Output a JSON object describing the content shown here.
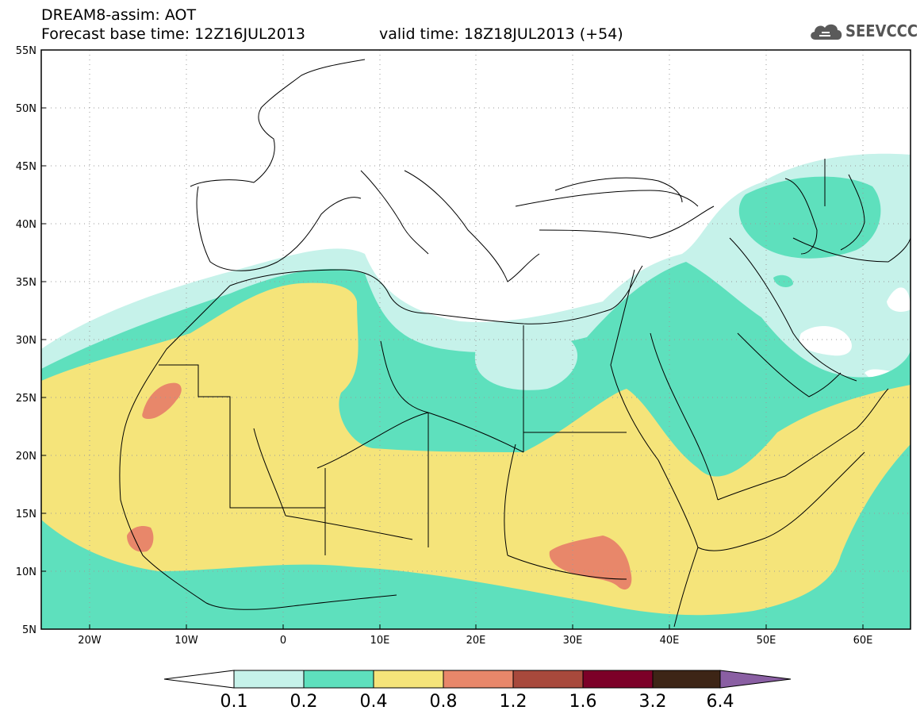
{
  "header": {
    "title": "DREAM8-assim: AOT",
    "base_time": "Forecast base time: 12Z16JUL2013",
    "valid_time": "valid time: 18Z18JUL2013 (+54)",
    "logo_text": "SEEVCCC"
  },
  "map": {
    "lat_labels": [
      "55N",
      "50N",
      "45N",
      "40N",
      "35N",
      "30N",
      "25N",
      "20N",
      "15N",
      "10N",
      "5N"
    ],
    "lon_labels": [
      "20W",
      "10W",
      "0",
      "10E",
      "20E",
      "30E",
      "40E",
      "50E",
      "60E"
    ],
    "extent": {
      "lon_min": -25,
      "lon_max": 65,
      "lat_min": 5,
      "lat_max": 55
    },
    "colors": {
      "land_border": "#000000",
      "grid": "#9a9a9a"
    }
  },
  "legend": {
    "labels": [
      "0.1",
      "0.2",
      "0.4",
      "0.8",
      "1.2",
      "1.6",
      "3.2",
      "6.4"
    ],
    "colors": [
      "#ffffff",
      "#c6f2ea",
      "#5ee0bd",
      "#f5e47a",
      "#e8876a",
      "#a8493c",
      "#7c0028",
      "#3d2516",
      "#8a5fa3"
    ]
  }
}
